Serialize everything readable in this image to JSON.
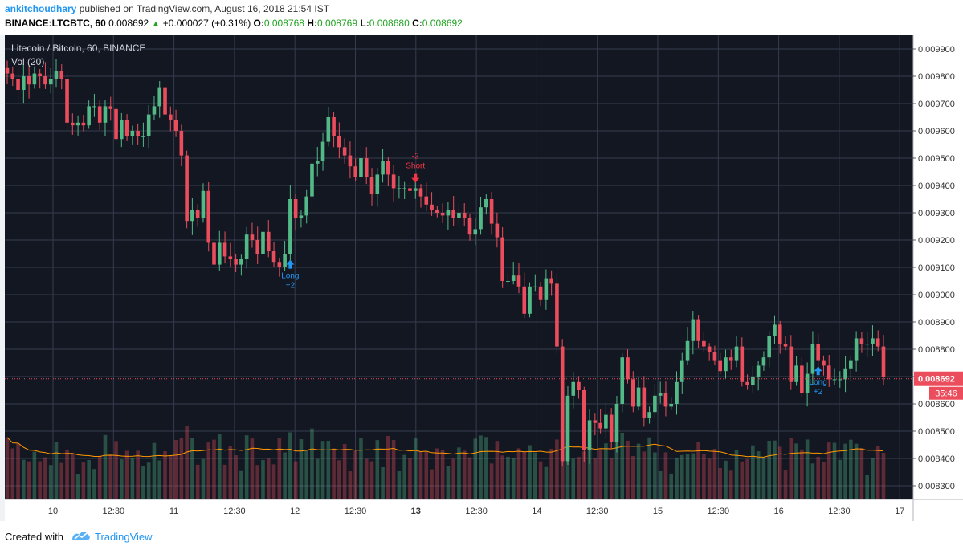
{
  "header": {
    "author": "ankitchoudhary",
    "published_text": "published on TradingView.com, August 16, 2018 21:54 IST",
    "symbol_line": "BINANCE:LTCBTC, 60",
    "last": "0.008692",
    "change": "+0.000027 (+0.31%)",
    "o_label": "O:",
    "o_value": "0.008768",
    "h_label": "H:",
    "h_value": "0.008769",
    "l_label": "L:",
    "l_value": "0.008680",
    "c_label": "C:",
    "c_value": "0.008692"
  },
  "chart_data": {
    "type": "candlestick",
    "title": "Litecoin / Bitcoin, 60, BINANCE",
    "indicator": "Vol (20)",
    "ylim": [
      0.00825,
      0.00995
    ],
    "y_ticks": [
      "0.009900",
      "0.009800",
      "0.009700",
      "0.009600",
      "0.009500",
      "0.009400",
      "0.009300",
      "0.009200",
      "0.009100",
      "0.009000",
      "0.008900",
      "0.008800",
      "0.008700",
      "0.008600",
      "0.008500",
      "0.008400",
      "0.008300"
    ],
    "x_ticks": [
      {
        "label": "10",
        "bold": false
      },
      {
        "label": "12:30",
        "bold": false
      },
      {
        "label": "11",
        "bold": false
      },
      {
        "label": "12:30",
        "bold": false
      },
      {
        "label": "12",
        "bold": false
      },
      {
        "label": "12:30",
        "bold": false
      },
      {
        "label": "13",
        "bold": true
      },
      {
        "label": "12:30",
        "bold": false
      },
      {
        "label": "14",
        "bold": false
      },
      {
        "label": "12:30",
        "bold": false
      },
      {
        "label": "15",
        "bold": false
      },
      {
        "label": "12:30",
        "bold": false
      },
      {
        "label": "16",
        "bold": false
      },
      {
        "label": "12:30",
        "bold": false
      },
      {
        "label": "17",
        "bold": false
      }
    ],
    "last_price_label": "0.008692",
    "last_price": 0.008692,
    "countdown": "35:46",
    "closes": [
      0.00981,
      0.00979,
      0.00975,
      0.0098,
      0.00977,
      0.00981,
      0.0098,
      0.00977,
      0.00979,
      0.00982,
      0.00979,
      0.00963,
      0.00962,
      0.00963,
      0.00962,
      0.00969,
      0.00969,
      0.00963,
      0.00969,
      0.00968,
      0.00957,
      0.00964,
      0.00958,
      0.0096,
      0.00958,
      0.00958,
      0.00966,
      0.00969,
      0.00976,
      0.00966,
      0.00964,
      0.0096,
      0.00951,
      0.00927,
      0.00931,
      0.00928,
      0.00938,
      0.00919,
      0.00911,
      0.00919,
      0.00914,
      0.00913,
      0.00911,
      0.00913,
      0.00922,
      0.0092,
      0.00915,
      0.00923,
      0.00916,
      0.00912,
      0.0091,
      0.00915,
      0.00935,
      0.00928,
      0.00929,
      0.00936,
      0.00948,
      0.00949,
      0.00956,
      0.00965,
      0.00958,
      0.00954,
      0.00951,
      0.00947,
      0.00943,
      0.0095,
      0.00943,
      0.00937,
      0.00944,
      0.00949,
      0.00944,
      0.00939,
      0.00939,
      0.00939,
      0.00938,
      0.00939,
      0.00936,
      0.00933,
      0.00931,
      0.0093,
      0.00929,
      0.00931,
      0.00928,
      0.0093,
      0.00928,
      0.00922,
      0.00924,
      0.00932,
      0.00935,
      0.00926,
      0.00921,
      0.00905,
      0.00905,
      0.00907,
      0.00903,
      0.00893,
      0.00903,
      0.00903,
      0.00898,
      0.00906,
      0.00904,
      0.00881,
      0.00839,
      0.00863,
      0.00868,
      0.00865,
      0.00843,
      0.00854,
      0.00853,
      0.00851,
      0.00856,
      0.00846,
      0.0086,
      0.00877,
      0.00869,
      0.00859,
      0.00866,
      0.00855,
      0.00857,
      0.00863,
      0.00864,
      0.00859,
      0.0086,
      0.00868,
      0.00876,
      0.00883,
      0.00891,
      0.00883,
      0.00881,
      0.00879,
      0.00876,
      0.00872,
      0.00877,
      0.00876,
      0.00881,
      0.00868,
      0.00867,
      0.0087,
      0.00874,
      0.00877,
      0.00885,
      0.00889,
      0.00882,
      0.00881,
      0.00868,
      0.00874,
      0.00864,
      0.00871,
      0.00882,
      0.00876,
      0.00874,
      0.00869,
      0.00869,
      0.00869,
      0.00873,
      0.00876,
      0.00884,
      0.00882,
      0.00882,
      0.00884,
      0.00881,
      0.0087
    ],
    "markers": [
      {
        "type": "long",
        "lines": [
          "Long",
          "+2"
        ],
        "x_index": 52
      },
      {
        "type": "short",
        "lines": [
          "-2",
          "Short"
        ],
        "x_index": 75
      },
      {
        "type": "long",
        "lines": [
          "Long",
          "+2"
        ],
        "x_index": 149
      }
    ],
    "colors": {
      "up": "#53b987",
      "down": "#eb4d5c",
      "background": "#131722",
      "grid": "#363c4e",
      "vol_ma": "#ff9800",
      "long": "#2196f3",
      "short": "#f23645"
    }
  },
  "footer": {
    "created_with": "Created with",
    "brand": "TradingView"
  }
}
